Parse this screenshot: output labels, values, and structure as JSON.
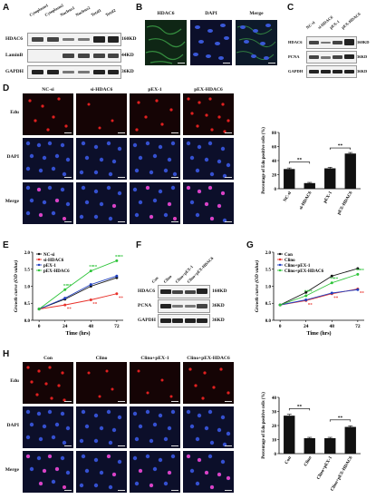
{
  "panels": {
    "A": {
      "label": "A",
      "lanes": [
        "Cytoplasm1",
        "Cytoplasm2",
        "Nucleus1",
        "Nucleus2",
        "Total1",
        "Total2"
      ],
      "rows": [
        "HDAC6",
        "LaminB",
        "GAPDH"
      ],
      "sizes": [
        "160KD",
        "44KD",
        "36KD"
      ]
    },
    "B": {
      "label": "B",
      "columns": [
        "HDAC6",
        "DAPI",
        "Merge"
      ]
    },
    "C": {
      "label": "C",
      "lanes": [
        "NC-si",
        "si-HDAC6",
        "pEX-1",
        "pEX-HDAC6"
      ],
      "rows": [
        "HDAC6",
        "PCNA",
        "GAPDH"
      ],
      "sizes": [
        "160KD",
        "36KD",
        "36KD"
      ]
    },
    "D": {
      "label": "D",
      "columns": [
        "NC-si",
        "si-HDAC6",
        "pEX-1",
        "pEX-HDAC6"
      ],
      "rows": [
        "Edu",
        "DAPI",
        "Merge"
      ]
    },
    "E": {
      "label": "E",
      "legend": [
        "NC-si",
        "si-HDAC6",
        "pEX-1",
        "pEX-HDAC6"
      ]
    },
    "F": {
      "label": "F",
      "lanes": [
        "Con",
        "Clino",
        "Clino+pEX-1",
        "Clino+pEX-HDAC6"
      ],
      "rows": [
        "HDAC6",
        "PCNA",
        "GAPDH"
      ],
      "sizes": [
        "160KD",
        "36KD",
        "36KD"
      ]
    },
    "G": {
      "label": "G",
      "legend": [
        "Con",
        "Clino",
        "Clino+pEX-1",
        "Clino+pEX-HDAC6"
      ]
    },
    "H": {
      "label": "H",
      "columns": [
        "Con",
        "Clino",
        "Clino+pEX-1",
        "Clino+pEX-HDAC6"
      ],
      "rows": [
        "Edu",
        "DAPI",
        "Merge"
      ]
    }
  },
  "sig": "**",
  "chart_data": [
    {
      "id": "D-bar",
      "type": "bar",
      "categories": [
        "NC-si",
        "si-HDAC6",
        "pEX-1",
        "pEX-HDAC6"
      ],
      "values": [
        28,
        8,
        29,
        50
      ],
      "errors": [
        1.5,
        1,
        1.5,
        1.5
      ],
      "ylabel": "Percentage of Edu positive cells (%)",
      "ylim": [
        0,
        80
      ],
      "yticks": [
        "0",
        "20",
        "40",
        "60",
        "80"
      ],
      "colors": [
        "#111111",
        "#111111",
        "#111111",
        "#111111"
      ]
    },
    {
      "id": "E-line",
      "type": "line",
      "x": [
        0,
        24,
        48,
        72
      ],
      "xticks": [
        "0",
        "24",
        "48",
        "72"
      ],
      "xlabel": "Time (hrs)",
      "ylabel": "Growth curve (OD value)",
      "ylim": [
        0,
        2.0
      ],
      "yticks": [
        "0.0",
        "0.5",
        "1.0",
        "1.5",
        "2.0"
      ],
      "series": [
        {
          "name": "NC-si",
          "values": [
            0.33,
            0.62,
            1.0,
            1.25
          ],
          "color": "#111111"
        },
        {
          "name": "si-HDAC6",
          "values": [
            0.33,
            0.45,
            0.6,
            0.78
          ],
          "color": "#e8312a"
        },
        {
          "name": "pEX-1",
          "values": [
            0.33,
            0.65,
            1.05,
            1.3
          ],
          "color": "#1f3fbf"
        },
        {
          "name": "pEX-HDAC6",
          "values": [
            0.33,
            0.9,
            1.45,
            1.75
          ],
          "color": "#2ec43a"
        }
      ]
    },
    {
      "id": "G-line",
      "type": "line",
      "x": [
        0,
        24,
        48,
        72
      ],
      "xticks": [
        "0",
        "24",
        "48",
        "72"
      ],
      "xlabel": "Time (hrs)",
      "ylabel": "Growth curve (OD value)",
      "ylim": [
        0,
        2.0
      ],
      "yticks": [
        "0.0",
        "0.5",
        "1.0",
        "1.5",
        "2.0"
      ],
      "series": [
        {
          "name": "Con",
          "values": [
            0.45,
            0.82,
            1.3,
            1.52
          ],
          "color": "#111111"
        },
        {
          "name": "Clino",
          "values": [
            0.45,
            0.58,
            0.78,
            0.92
          ],
          "color": "#e8312a"
        },
        {
          "name": "Clino+pEX-1",
          "values": [
            0.45,
            0.6,
            0.8,
            0.9
          ],
          "color": "#1f3fbf"
        },
        {
          "name": "Clino+pEX-HDAC6",
          "values": [
            0.45,
            0.72,
            1.1,
            1.35
          ],
          "color": "#2ec43a"
        }
      ]
    },
    {
      "id": "H-bar",
      "type": "bar",
      "categories": [
        "Con",
        "Clino",
        "Clino+pEX-1",
        "Clino+pEX-HDAC6"
      ],
      "values": [
        27,
        11,
        11,
        19
      ],
      "errors": [
        1,
        0.6,
        0.6,
        0.8
      ],
      "ylabel": "Percentage of Edu positive cells (%)",
      "ylim": [
        0,
        40
      ],
      "yticks": [
        "0",
        "10",
        "20",
        "30",
        "40"
      ],
      "colors": [
        "#111111",
        "#111111",
        "#111111",
        "#111111"
      ]
    }
  ]
}
